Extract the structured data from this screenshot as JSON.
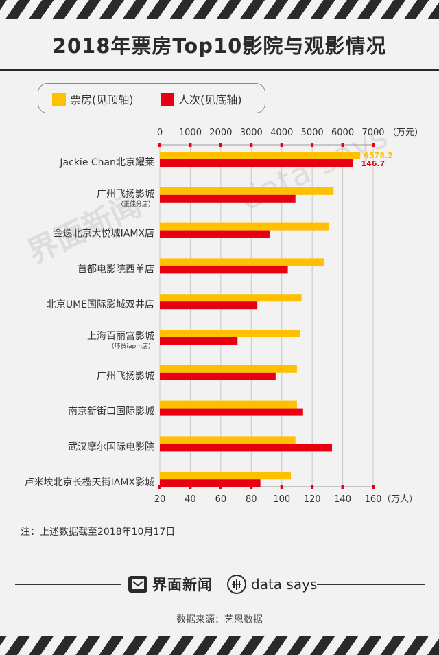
{
  "title": "2018年票房Top10影院与观影情况",
  "legend": {
    "box_office": "票房(见顶轴)",
    "attendance": "人次(见底轴)"
  },
  "colors": {
    "box_office": "#ffc000",
    "attendance": "#e60012",
    "dark": "#2a2a2a",
    "watermark": "#dddddd"
  },
  "note": "注：上述数据截至2018年10月17日",
  "footer": {
    "brand_jm": "界面新闻",
    "brand_ds": "data says",
    "source": "数据来源：艺恩数据"
  },
  "watermark": {
    "ds": "data says",
    "jm": "界面新闻"
  },
  "chart_data": {
    "type": "bar",
    "orientation": "horizontal",
    "categories": [
      {
        "name": "Jackie Chan北京耀莱",
        "sub": ""
      },
      {
        "name": "广州飞扬影城",
        "sub": "（正佳分店）"
      },
      {
        "name": "金逸北京大悦城IAMX店",
        "sub": ""
      },
      {
        "name": "首都电影院西单店",
        "sub": ""
      },
      {
        "name": "北京UME国际影城双井店",
        "sub": ""
      },
      {
        "name": "上海百丽宫影城",
        "sub": "（环贸iapm店）"
      },
      {
        "name": "广州飞扬影城",
        "sub": ""
      },
      {
        "name": "南京新街口国际影城",
        "sub": ""
      },
      {
        "name": "武汉摩尔国际电影院",
        "sub": ""
      },
      {
        "name": "卢米埃北京长楹天街IAMX影城",
        "sub": ""
      }
    ],
    "series": [
      {
        "name": "票房(见顶轴)",
        "axis": "top",
        "values": [
          6578.2,
          5700,
          5560,
          5400,
          4650,
          4600,
          4500,
          4500,
          4450,
          4300
        ],
        "labels": [
          "6578.2",
          "",
          "",
          "",
          "",
          "",
          "",
          "",
          "",
          ""
        ]
      },
      {
        "name": "人次(见底轴)",
        "axis": "bottom",
        "values": [
          146.7,
          109,
          92,
          104,
          84,
          71,
          96,
          114,
          133,
          86
        ],
        "labels": [
          "146.7",
          "",
          "",
          "",
          "",
          "",
          "",
          "",
          "",
          ""
        ]
      }
    ],
    "top_axis": {
      "min": 0,
      "max": 7000,
      "ticks": [
        "0",
        "1000",
        "2000",
        "3000",
        "4000",
        "5000",
        "6000",
        "7000"
      ],
      "unit": "（万元）"
    },
    "bottom_axis": {
      "min": 20,
      "max": 160,
      "ticks": [
        "20",
        "40",
        "60",
        "80",
        "100",
        "120",
        "140",
        "160"
      ],
      "unit": "（万人）"
    },
    "grid": true,
    "legend_position": "top-left"
  }
}
